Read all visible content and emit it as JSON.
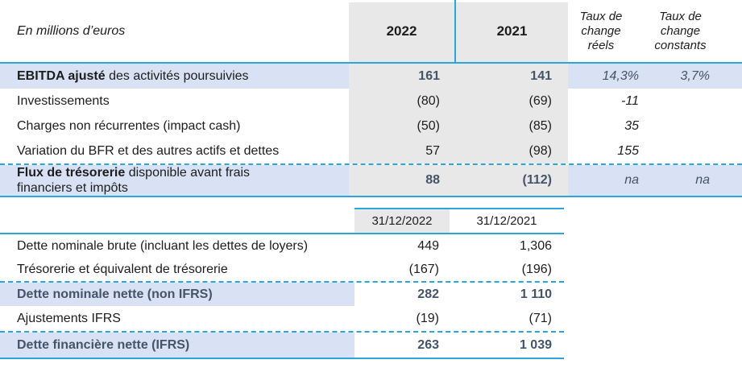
{
  "colors": {
    "accent_blue": "#29a7db",
    "highlight_row": "#d9e1f4",
    "column_gray": "#e8e8e8",
    "emphasis_navy": "#44546a"
  },
  "table1": {
    "unit_label": "En millions d’euros",
    "headers": {
      "col2022": "2022",
      "col2021": "2021",
      "rate_real": "Taux de change réels",
      "rate_constant": "Taux de change constants"
    },
    "rows": [
      {
        "label_bold": "EBITDA ajusté",
        "label_rest": " des activités poursuivies",
        "v2022": "161",
        "v2021": "141",
        "reels": "14,3%",
        "constants": "3,7%"
      },
      {
        "label": "Investissements",
        "v2022": "(80)",
        "v2021": "(69)",
        "reels": "-11",
        "constants": ""
      },
      {
        "label": "Charges non récurrentes (impact cash)",
        "v2022": "(50)",
        "v2021": "(85)",
        "reels": "35",
        "constants": ""
      },
      {
        "label": "Variation du BFR et des autres actifs et dettes",
        "v2022": "57",
        "v2021": "(98)",
        "reels": "155",
        "constants": ""
      },
      {
        "label_bold": "Flux de trésorerie",
        "label_rest": " disponible avant frais financiers et impôts",
        "v2022": "88",
        "v2021": "(112)",
        "reels": "na",
        "constants": "na"
      }
    ]
  },
  "table2": {
    "headers": {
      "col2022": "31/12/2022",
      "col2021": "31/12/2021"
    },
    "rows": [
      {
        "label": "Dette nominale brute (incluant les dettes de loyers)",
        "v2022": "449",
        "v2021": "1,306"
      },
      {
        "label": "Trésorerie et équivalent de trésorerie",
        "v2022": "(167)",
        "v2021": "(196)"
      },
      {
        "label": "Dette nominale nette (non IFRS)",
        "v2022": "282",
        "v2021": "1 110"
      },
      {
        "label": "Ajustements IFRS",
        "v2022": "(19)",
        "v2021": "(71)"
      },
      {
        "label": "Dette financière nette (IFRS)",
        "v2022": "263",
        "v2021": "1 039"
      }
    ]
  }
}
